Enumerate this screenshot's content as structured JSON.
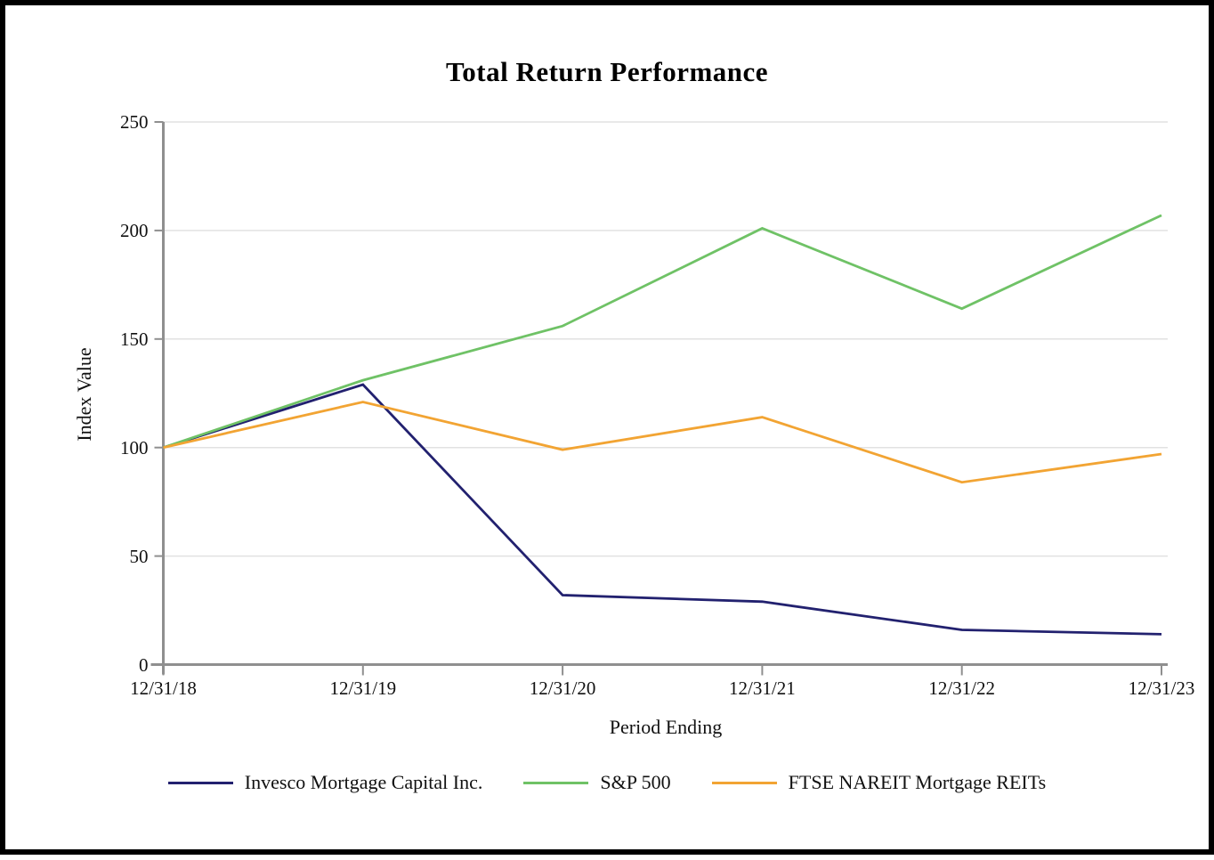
{
  "chart_data": {
    "type": "line",
    "title": "Total Return Performance",
    "xlabel": "Period Ending",
    "ylabel": "Index Value",
    "categories": [
      "12/31/18",
      "12/31/19",
      "12/31/20",
      "12/31/21",
      "12/31/22",
      "12/31/23"
    ],
    "yticks": [
      0,
      50,
      100,
      150,
      200,
      250
    ],
    "ylim": [
      0,
      250
    ],
    "grid": "horizontal-light",
    "legend_position": "bottom",
    "colors": {
      "axis": "#8F8F8F",
      "gridline": "#E2E2E2",
      "background": "#FFFFFF",
      "frame_border": "#000000"
    },
    "series": [
      {
        "name": "Invesco Mortgage Capital Inc.",
        "color": "#22216F",
        "values": [
          100,
          129,
          32,
          29,
          16,
          14
        ]
      },
      {
        "name": "S&P 500",
        "color": "#6FC266",
        "values": [
          100,
          131,
          156,
          201,
          164,
          207
        ]
      },
      {
        "name": "FTSE NAREIT Mortgage REITs",
        "color": "#F2A433",
        "values": [
          100,
          121,
          99,
          114,
          84,
          97
        ]
      }
    ]
  }
}
